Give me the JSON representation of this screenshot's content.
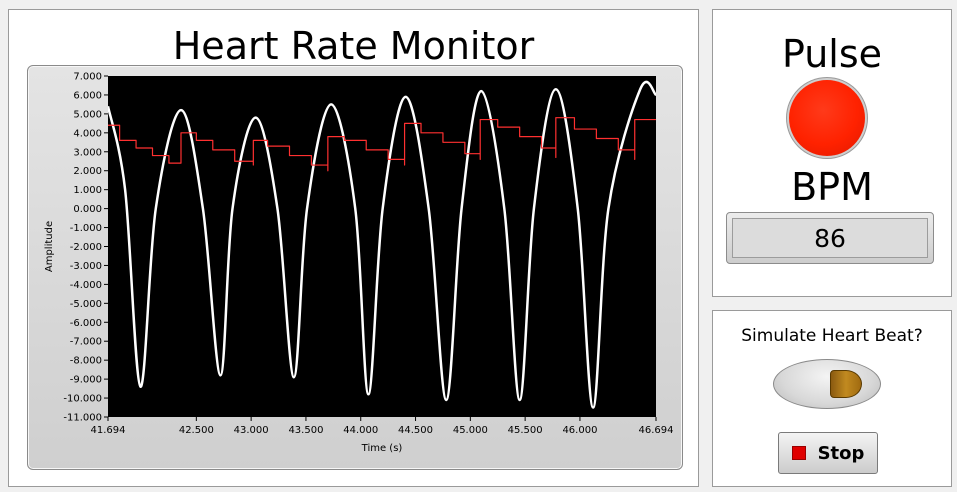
{
  "monitor": {
    "title": "Heart Rate Monitor"
  },
  "pulse": {
    "label": "Pulse",
    "led_color": "#ff2200"
  },
  "bpm": {
    "label": "BPM",
    "value": "86"
  },
  "simulate": {
    "label": "Simulate Heart Beat?"
  },
  "stop": {
    "label": "Stop",
    "icon": "stop-square-icon"
  },
  "chart_data": {
    "type": "line",
    "xlabel": "Time (s)",
    "ylabel": "Amplitude",
    "xlim": [
      41.694,
      46.694
    ],
    "ylim": [
      -11.0,
      7.0
    ],
    "x_ticks": [
      "41.694",
      "42.500",
      "43.000",
      "43.500",
      "44.000",
      "44.500",
      "45.000",
      "45.500",
      "46.000",
      "46.694"
    ],
    "x_tick_values": [
      41.694,
      42.5,
      43.0,
      43.5,
      44.0,
      44.5,
      45.0,
      45.5,
      46.0,
      46.694
    ],
    "y_ticks": [
      "7.000",
      "6.000",
      "5.000",
      "4.000",
      "3.000",
      "2.000",
      "1.000",
      "0.000",
      "-1.000",
      "-2.000",
      "-3.000",
      "-4.000",
      "-5.000",
      "-6.000",
      "-7.000",
      "-8.000",
      "-9.000",
      "-10.000",
      "-11.000"
    ],
    "y_tick_values": [
      7,
      6,
      5,
      4,
      3,
      2,
      1,
      0,
      -1,
      -2,
      -3,
      -4,
      -5,
      -6,
      -7,
      -8,
      -9,
      -10,
      -11
    ],
    "plot_background": "#000000",
    "series": [
      {
        "color": "#ffffff",
        "values": [
          [
            41.694,
            5.4
          ],
          [
            41.85,
            1.0
          ],
          [
            41.99,
            -9.4
          ],
          [
            42.13,
            0.0
          ],
          [
            42.36,
            5.2
          ],
          [
            42.56,
            0.0
          ],
          [
            42.72,
            -8.8
          ],
          [
            42.83,
            0.0
          ],
          [
            43.04,
            4.8
          ],
          [
            43.24,
            0.0
          ],
          [
            43.39,
            -8.9
          ],
          [
            43.51,
            0.0
          ],
          [
            43.73,
            5.5
          ],
          [
            43.95,
            0.0
          ],
          [
            44.07,
            -9.8
          ],
          [
            44.2,
            0.0
          ],
          [
            44.41,
            5.9
          ],
          [
            44.62,
            0.0
          ],
          [
            44.78,
            -10.1
          ],
          [
            44.92,
            0.0
          ],
          [
            45.1,
            6.2
          ],
          [
            45.31,
            0.0
          ],
          [
            45.45,
            -10.1
          ],
          [
            45.58,
            0.0
          ],
          [
            45.78,
            6.3
          ],
          [
            45.98,
            0.0
          ],
          [
            46.12,
            -10.5
          ],
          [
            46.26,
            0.0
          ],
          [
            46.55,
            6.3
          ],
          [
            46.694,
            6.0
          ]
        ]
      },
      {
        "color": "#ff3030",
        "values": [
          [
            41.694,
            4.4
          ],
          [
            41.8,
            3.6
          ],
          [
            41.95,
            3.2
          ],
          [
            42.1,
            2.8
          ],
          [
            42.25,
            2.4
          ],
          [
            42.36,
            2.4
          ],
          [
            42.36,
            4.0
          ],
          [
            42.5,
            3.6
          ],
          [
            42.65,
            3.1
          ],
          [
            42.85,
            2.5
          ],
          [
            43.02,
            2.3
          ],
          [
            43.02,
            3.6
          ],
          [
            43.15,
            3.3
          ],
          [
            43.35,
            2.8
          ],
          [
            43.55,
            2.3
          ],
          [
            43.7,
            2.0
          ],
          [
            43.7,
            3.8
          ],
          [
            43.85,
            3.6
          ],
          [
            44.05,
            3.1
          ],
          [
            44.25,
            2.6
          ],
          [
            44.4,
            2.3
          ],
          [
            44.4,
            4.5
          ],
          [
            44.55,
            4.0
          ],
          [
            44.75,
            3.5
          ],
          [
            44.95,
            2.9
          ],
          [
            45.09,
            2.6
          ],
          [
            45.09,
            4.7
          ],
          [
            45.25,
            4.3
          ],
          [
            45.45,
            3.8
          ],
          [
            45.65,
            3.2
          ],
          [
            45.78,
            2.7
          ],
          [
            45.78,
            4.8
          ],
          [
            45.95,
            4.2
          ],
          [
            46.15,
            3.7
          ],
          [
            46.35,
            3.1
          ],
          [
            46.5,
            2.6
          ],
          [
            46.5,
            4.7
          ],
          [
            46.694,
            4.7
          ]
        ]
      }
    ]
  }
}
